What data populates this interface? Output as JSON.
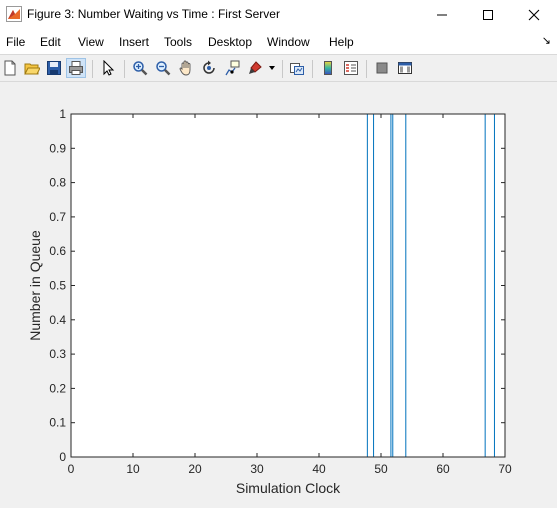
{
  "window": {
    "title": "Figure 3: Number Waiting vs Time : First Server",
    "minimize_glyph": "—",
    "maximize_glyph": "☐",
    "close_glyph": "✕"
  },
  "menu": {
    "items": [
      "File",
      "Edit",
      "View",
      "Insert",
      "Tools",
      "Desktop",
      "Window",
      "Help"
    ],
    "arrow": "↘"
  },
  "toolbar": {
    "buttons": [
      "new-figure-icon",
      "open-file-icon",
      "save-icon",
      "print-icon",
      "edit-plot-pointer-icon",
      "zoom-in-icon",
      "zoom-out-icon",
      "pan-hand-icon",
      "rotate-3d-icon",
      "data-cursor-icon",
      "brush-icon",
      "link-plot-icon",
      "colorbar-icon",
      "legend-icon",
      "hide-plot-tools-icon",
      "show-plot-tools-icon"
    ]
  },
  "chart_data": {
    "type": "line",
    "xlabel": "Simulation Clock",
    "ylabel": "Number in Queue",
    "xlim": [
      0,
      70
    ],
    "ylim": [
      0,
      1
    ],
    "xticks": [
      0,
      10,
      20,
      30,
      40,
      50,
      60,
      70
    ],
    "yticks": [
      0,
      0.1,
      0.2,
      0.3,
      0.4,
      0.5,
      0.6,
      0.7,
      0.8,
      0.9,
      1
    ],
    "grid": false,
    "line_color": "#0072bd",
    "series": [
      {
        "x": [
          0,
          47.8,
          47.8,
          48.8,
          48.8,
          51.6,
          51.6,
          51.9,
          51.9,
          54.0,
          54.0,
          66.8,
          66.8,
          68.3,
          68.3,
          70
        ],
        "y": [
          0,
          0,
          1,
          1,
          0,
          0,
          1,
          1,
          0,
          0,
          1,
          1,
          0,
          0,
          1,
          1
        ]
      }
    ]
  }
}
